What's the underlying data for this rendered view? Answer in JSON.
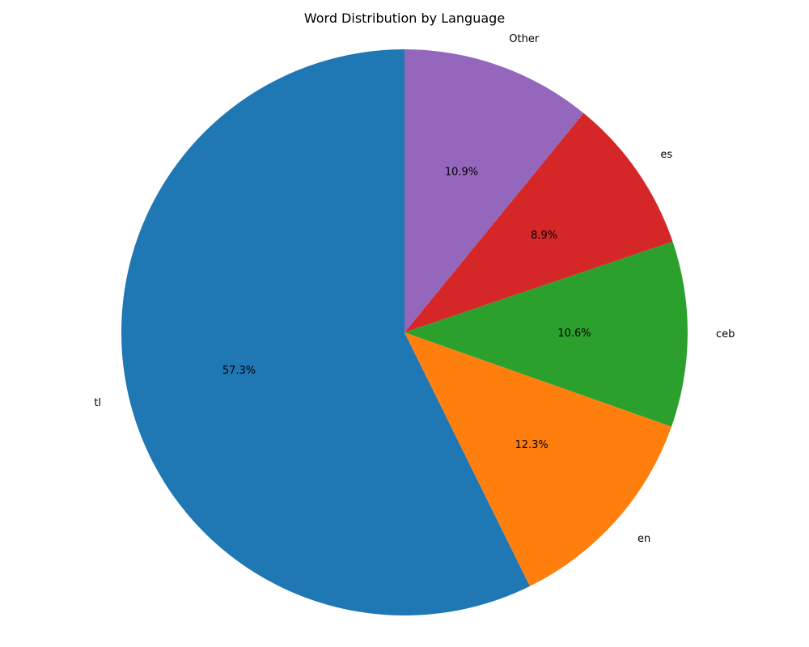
{
  "chart_data": {
    "type": "pie",
    "title": "Word Distribution by Language",
    "start_angle": "top",
    "direction": "counterclockwise",
    "slices": [
      {
        "label": "tl",
        "value": 57.3,
        "pct_label": "57.3%",
        "color": "#1f77b4"
      },
      {
        "label": "en",
        "value": 12.3,
        "pct_label": "12.3%",
        "color": "#ff7f0e"
      },
      {
        "label": "ceb",
        "value": 10.6,
        "pct_label": "10.6%",
        "color": "#2ca02c"
      },
      {
        "label": "es",
        "value": 8.9,
        "pct_label": "8.9%",
        "color": "#d62728"
      },
      {
        "label": "Other",
        "value": 10.9,
        "pct_label": "10.9%",
        "color": "#9467bd"
      }
    ]
  }
}
